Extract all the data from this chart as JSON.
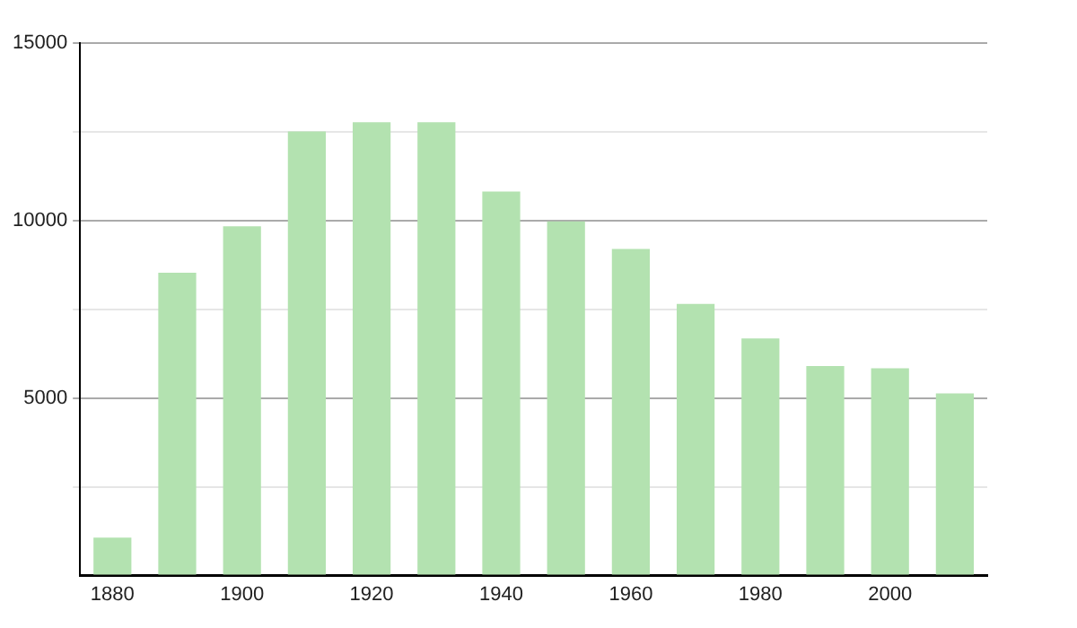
{
  "chart_data": {
    "type": "bar",
    "categories": [
      "1880",
      null,
      "1900",
      null,
      "1920",
      null,
      "1940",
      null,
      "1960",
      null,
      "1980",
      null,
      "2000",
      null
    ],
    "values": [
      1070,
      8530,
      9840,
      12510,
      12770,
      12770,
      10820,
      9980,
      9200,
      7650,
      6680,
      5900,
      5840,
      5130
    ],
    "color": "#b3e2b0",
    "ylim": [
      0,
      15000
    ],
    "yticks": [
      {
        "value": 0,
        "label": null
      },
      {
        "value": 2500,
        "label": null
      },
      5000,
      {
        "value": 7500,
        "label": null
      },
      10000,
      {
        "value": 12500,
        "label": null
      },
      15000
    ],
    "grid": "y",
    "legend": false
  }
}
